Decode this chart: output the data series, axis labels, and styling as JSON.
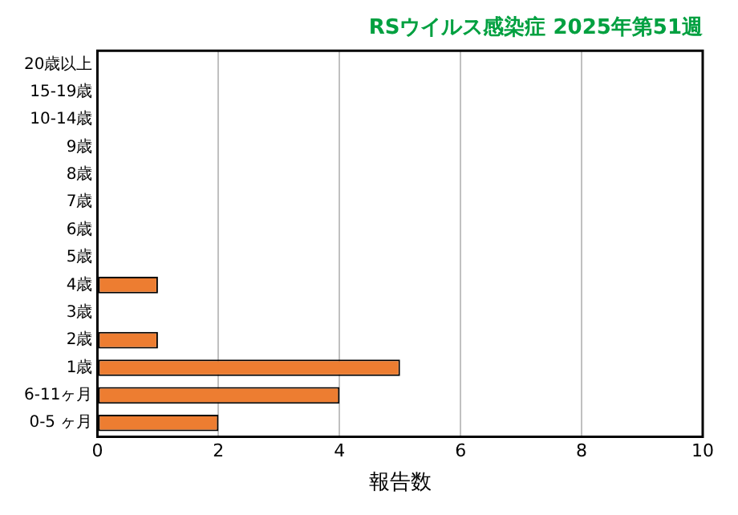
{
  "chart_data": {
    "type": "bar",
    "orientation": "horizontal",
    "title": "RSウイルス感染症 2025年第51週",
    "xlabel": "報告数",
    "categories": [
      "20歳以上",
      "15-19歳",
      "10-14歳",
      "9歳",
      "8歳",
      "7歳",
      "6歳",
      "5歳",
      "4歳",
      "3歳",
      "2歳",
      "1歳",
      "6-11ヶ月",
      "0-5 ヶ月"
    ],
    "values": [
      0,
      0,
      0,
      0,
      0,
      0,
      0,
      0,
      1,
      0,
      1,
      5,
      4,
      2
    ],
    "color": "#ed7d31",
    "xlim": [
      0,
      10
    ],
    "xticks": [
      0,
      2,
      4,
      6,
      8,
      10
    ],
    "grid": "x"
  }
}
